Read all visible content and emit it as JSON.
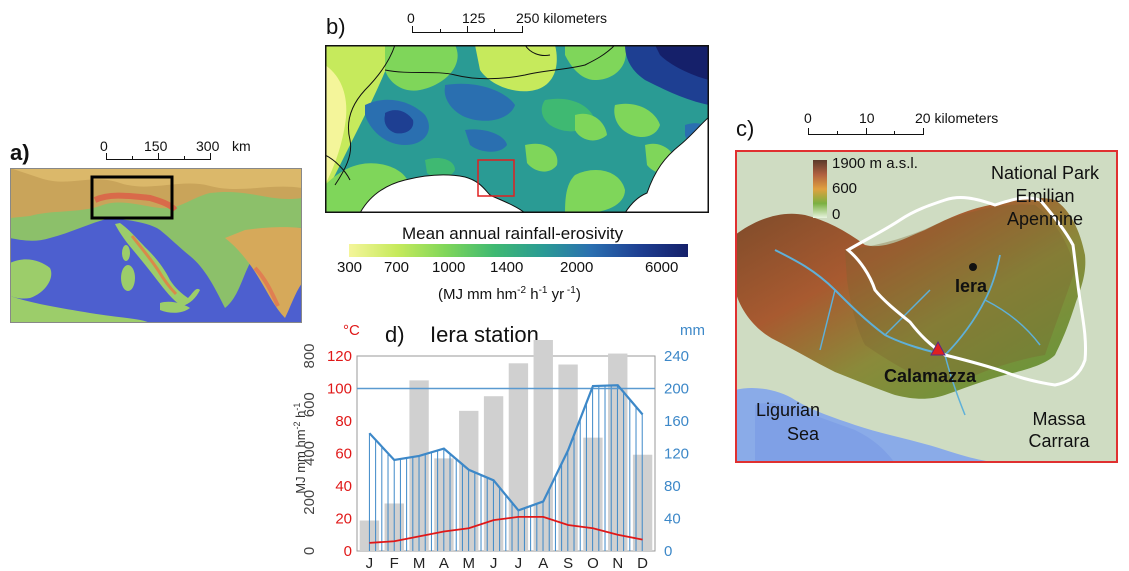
{
  "panel_a": {
    "label": "a)",
    "scale_labels": [
      "0",
      "150",
      "300"
    ],
    "scale_unit": "km"
  },
  "panel_b": {
    "label": "b)",
    "scale_labels": [
      "0",
      "125",
      "250 kilometers"
    ],
    "legend_title": "Mean annual rainfall-erosivity",
    "legend_ticks": [
      "300",
      "700",
      "1000",
      "1400",
      "2000",
      "6000"
    ],
    "legend_unit_main": "(MJ mm hm",
    "legend_unit_sup1": "-2",
    "legend_unit_mid": " h",
    "legend_unit_sup2": "-1",
    "legend_unit_end": " yr",
    "legend_unit_sup3": " -1",
    "legend_unit_close": ")",
    "colors": [
      "#f4f59a",
      "#c6ea5c",
      "#7fd65a",
      "#3fb972",
      "#2a9b94",
      "#2a6fb0",
      "#1e3f92",
      "#15206a"
    ]
  },
  "panel_c": {
    "label": "c)",
    "scale_labels": [
      "0",
      "10",
      "20 kilometers"
    ],
    "elev_labels": [
      "1900 m  a.s.l.",
      "600",
      "0"
    ],
    "place_labels": {
      "park": "National Park",
      "park2": "Emilian",
      "park3": "Apennine",
      "iera": "Iera",
      "calamazza": "Calamazza",
      "sea1": "Ligurian",
      "sea2": "Sea",
      "massa1": "Massa",
      "massa2": "Carrara"
    }
  },
  "panel_d": {
    "label": "d)",
    "title": "Iera station",
    "left_unit_temp": "°C",
    "right_unit": "mm",
    "left_axis_label": "MJ mm hm",
    "left_axis_sup1": "-2",
    "left_axis_mid": " h",
    "left_axis_sup2": "-1"
  },
  "chart_data": {
    "type": "bar",
    "categories": [
      "J",
      "F",
      "M",
      "A",
      "M",
      "J",
      "J",
      "A",
      "S",
      "O",
      "N",
      "D"
    ],
    "series": [
      {
        "values": [
          125,
          195,
          700,
          380,
          575,
          635,
          770,
          975,
          765,
          465,
          810,
          395
        ],
        "color": "#d0d0d0"
      },
      {
        "values": [
          145,
          112,
          117,
          126,
          100,
          87,
          50,
          61,
          124,
          203,
          204,
          168
        ],
        "color": "#3d88c8"
      },
      {
        "values": [
          5,
          6,
          9,
          12,
          14,
          19,
          21,
          21,
          16,
          14,
          10,
          7
        ],
        "color": "#e01818"
      }
    ],
    "threshold_mm": 200,
    "y_left_erosivity": {
      "range": [
        0,
        800
      ],
      "ticks": [
        0,
        200,
        400,
        600,
        800
      ]
    },
    "y_left_temp": {
      "range": [
        0,
        120
      ],
      "ticks": [
        0,
        20,
        40,
        60,
        80,
        100,
        120
      ],
      "color": "#e01818"
    },
    "y_right_mm": {
      "range": [
        0,
        240
      ],
      "ticks": [
        0,
        40,
        80,
        120,
        160,
        200,
        240
      ],
      "color": "#3d88c8"
    },
    "grid": false
  }
}
